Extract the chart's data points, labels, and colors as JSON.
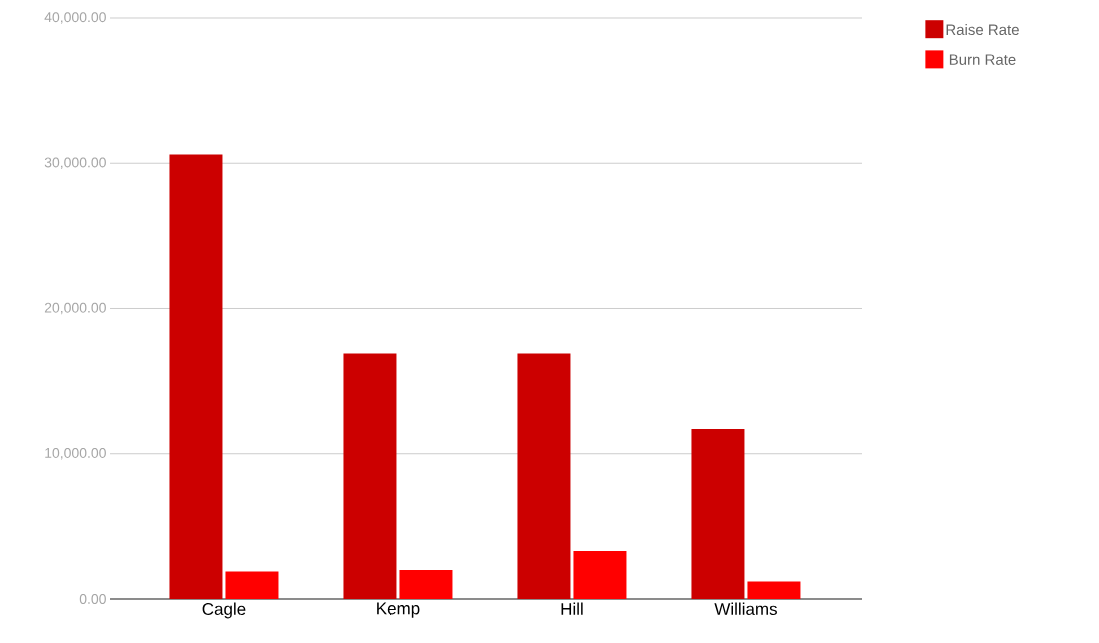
{
  "chart_data": {
    "type": "bar",
    "categories": [
      "Cagle",
      "Kemp",
      "Hill",
      "Williams"
    ],
    "series": [
      {
        "name": "Raise Rate",
        "color": "#cc0000",
        "values": [
          30600,
          16900,
          16900,
          11700
        ]
      },
      {
        "name": "Burn Rate",
        "color": "#ff0000",
        "values": [
          1900,
          2000,
          3300,
          1200
        ]
      }
    ],
    "ylim": [
      0,
      40000
    ],
    "yticks": [
      {
        "value": 0,
        "label": "0.00"
      },
      {
        "value": 10000,
        "label": "10,000.00"
      },
      {
        "value": 20000,
        "label": "20,000.00"
      },
      {
        "value": 30000,
        "label": "30,000.00"
      },
      {
        "value": 40000,
        "label": "40,000.00"
      }
    ],
    "grid": "y",
    "legend": "top right"
  }
}
